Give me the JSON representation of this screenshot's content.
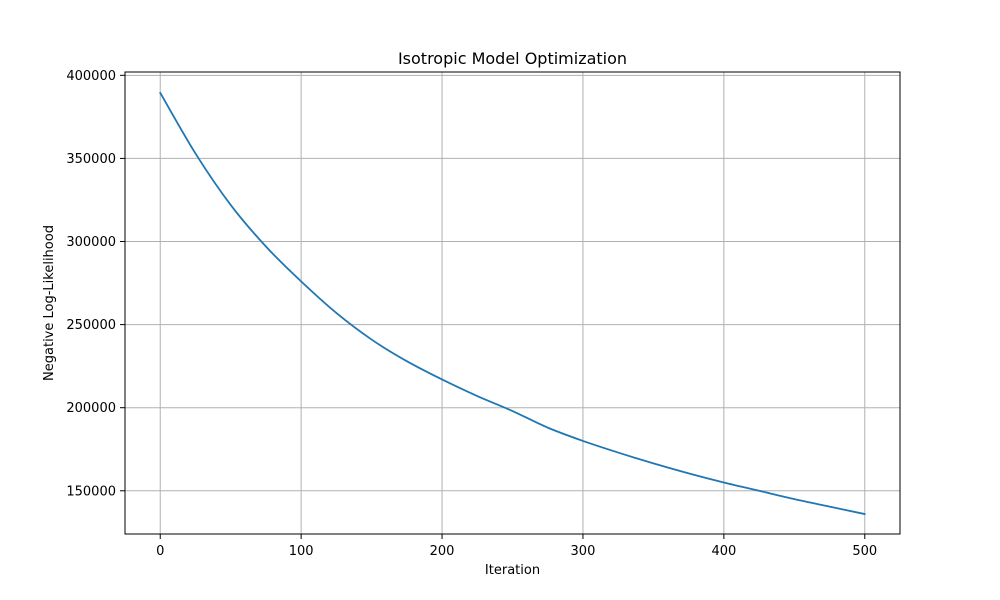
{
  "chart_data": {
    "type": "line",
    "title": "Isotropic Model Optimization",
    "xlabel": "Iteration",
    "ylabel": "Negative Log-Likelihood",
    "xlim": [
      -25,
      525
    ],
    "ylim": [
      124000,
      402000
    ],
    "xticks": [
      0,
      100,
      200,
      300,
      400,
      500
    ],
    "yticks": [
      150000,
      200000,
      250000,
      300000,
      350000,
      400000
    ],
    "xtick_labels": [
      "0",
      "100",
      "200",
      "300",
      "400",
      "500"
    ],
    "ytick_labels": [
      "150000",
      "200000",
      "250000",
      "300000",
      "350000",
      "400000"
    ],
    "grid": true,
    "legend": "none",
    "series": [
      {
        "color": "#1f77b4",
        "x": [
          0,
          25,
          50,
          75,
          100,
          125,
          150,
          175,
          200,
          225,
          250,
          275,
          300,
          325,
          350,
          375,
          400,
          425,
          450,
          475,
          500
        ],
        "y": [
          389500,
          353000,
          322000,
          297000,
          276000,
          257000,
          241000,
          228000,
          217000,
          207000,
          198000,
          188000,
          180000,
          173000,
          166500,
          160500,
          155000,
          150000,
          145000,
          140500,
          136000
        ]
      }
    ]
  }
}
